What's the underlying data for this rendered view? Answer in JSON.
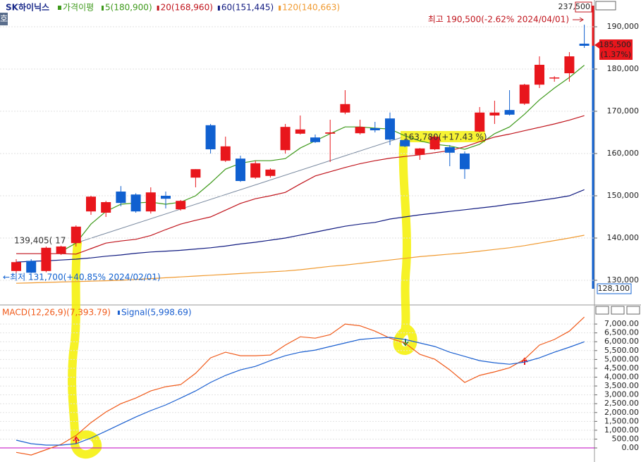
{
  "chart_data": [
    {
      "type": "candlestick",
      "title": "SK하이닉스",
      "ma_label": "가격이평",
      "up_color": "#e8161c",
      "down_color": "#1060d0",
      "grid": true,
      "ohlc": [
        [
          132200,
          135000,
          131700,
          134300
        ],
        [
          134600,
          135000,
          131700,
          131800
        ],
        [
          132200,
          138000,
          131900,
          137700
        ],
        [
          136300,
          138200,
          136000,
          138000
        ],
        [
          138800,
          143000,
          138000,
          142700
        ],
        [
          146300,
          150000,
          145500,
          149800
        ],
        [
          146000,
          148800,
          145000,
          148500
        ],
        [
          151000,
          152300,
          147500,
          148300
        ],
        [
          150300,
          150600,
          146000,
          146300
        ],
        [
          146300,
          152000,
          145800,
          150800
        ],
        [
          150000,
          151000,
          147000,
          149300
        ],
        [
          146800,
          149000,
          146500,
          148800
        ],
        [
          154300,
          156300,
          152000,
          156300
        ],
        [
          166700,
          167000,
          160000,
          161000
        ],
        [
          158300,
          164000,
          158000,
          161700
        ],
        [
          158800,
          159500,
          153300,
          153500
        ],
        [
          154300,
          158300,
          154000,
          157700
        ],
        [
          154700,
          156500,
          154300,
          156200
        ],
        [
          160800,
          167000,
          160000,
          166300
        ],
        [
          164700,
          169000,
          164500,
          165700
        ],
        [
          163800,
          164500,
          162500,
          162700
        ],
        [
          164700,
          168000,
          158000,
          165000
        ],
        [
          169700,
          175000,
          169300,
          171700
        ],
        [
          164800,
          168000,
          164500,
          166300
        ],
        [
          166000,
          167500,
          165000,
          165500
        ],
        [
          168300,
          169700,
          162000,
          163300
        ],
        [
          163200,
          163500,
          161500,
          161700
        ],
        [
          159700,
          161300,
          158500,
          161200
        ],
        [
          161000,
          164300,
          160800,
          164000
        ],
        [
          161500,
          162000,
          157000,
          160200
        ],
        [
          160000,
          160500,
          154000,
          156300
        ],
        [
          165200,
          171000,
          165000,
          169700
        ],
        [
          169000,
          172500,
          167000,
          169700
        ],
        [
          170300,
          175000,
          169000,
          169200
        ],
        [
          171800,
          176500,
          171500,
          176300
        ],
        [
          176300,
          183000,
          175500,
          181000
        ],
        [
          177800,
          178300,
          177000,
          178000
        ],
        [
          179000,
          184000,
          177000,
          183000
        ],
        [
          186000,
          190500,
          185000,
          185500
        ]
      ],
      "series": [
        {
          "name": "5(180,900)",
          "color": "#3f9a1c",
          "values": [
            null,
            null,
            null,
            136800,
            138800,
            143300,
            146300,
            148000,
            148300,
            148500,
            148000,
            148500,
            150000,
            153000,
            156300,
            157700,
            158300,
            158300,
            158800,
            161300,
            163000,
            164700,
            166300,
            166300,
            166000,
            165800,
            164200,
            163000,
            162200,
            161800,
            161000,
            162200,
            164700,
            166300,
            169300,
            172700,
            175500,
            178000,
            180900
          ]
        },
        {
          "name": "20(168,960)",
          "color": "#c0141c",
          "values": [
            136300,
            136300,
            136300,
            136300,
            136200,
            137500,
            138800,
            139300,
            139700,
            140600,
            142000,
            143300,
            144200,
            145000,
            146600,
            148200,
            149300,
            150000,
            150800,
            152800,
            154700,
            155700,
            156700,
            157600,
            158300,
            158900,
            159300,
            159700,
            160200,
            160700,
            161600,
            162800,
            163900,
            164600,
            165400,
            166200,
            167000,
            167900,
            168960
          ]
        },
        {
          "name": "60(151,445)",
          "color": "#101a80",
          "values": [
            134300,
            134500,
            134600,
            134800,
            135000,
            135300,
            135700,
            136000,
            136400,
            136700,
            136900,
            137100,
            137400,
            137700,
            138100,
            138600,
            139000,
            139500,
            140000,
            140700,
            141400,
            142100,
            142800,
            143300,
            143700,
            144500,
            145000,
            145500,
            145900,
            146300,
            146700,
            147100,
            147500,
            148000,
            148400,
            148900,
            149400,
            150000,
            151445
          ]
        },
        {
          "name": "120(140,663)",
          "color": "#f09a30",
          "values": [
            129300,
            129400,
            129500,
            129600,
            129700,
            129800,
            129900,
            130000,
            130200,
            130400,
            130600,
            130800,
            131000,
            131200,
            131400,
            131600,
            131800,
            132000,
            132200,
            132500,
            132900,
            133300,
            133600,
            134000,
            134400,
            134800,
            135200,
            135600,
            135900,
            136200,
            136500,
            136900,
            137300,
            137700,
            138200,
            138800,
            139400,
            140000,
            140663
          ]
        }
      ],
      "ylim": [
        125000,
        195000
      ],
      "yticks": [
        {
          "value": 130000,
          "label": "130,000"
        },
        {
          "value": 140000,
          "label": "140,000"
        },
        {
          "value": 150000,
          "label": "150,000"
        },
        {
          "value": 160000,
          "label": "160,000"
        },
        {
          "value": 170000,
          "label": "170,000"
        },
        {
          "value": 180000,
          "label": "180,000"
        },
        {
          "value": 190000,
          "label": "190,000"
        }
      ],
      "annotations": {
        "side_mark": "호",
        "axis_max_label": "237,500",
        "axis_min_label": "128,100",
        "last_price_label": "185,500",
        "last_change_label": "(1.37%)",
        "max_label": "최고 190,500(-2.62% 2024/04/01)",
        "min_label": "←최저 131,700(+40.85% 2024/02/01)",
        "tip_1": "139,405( 17",
        "tip_2": "163,780(+17.43 %)"
      }
    },
    {
      "type": "line",
      "grid": true,
      "series": [
        {
          "name": "MACD(12,26,9)(7,393.79)",
          "color": "#f05a1a",
          "values": [
            -250,
            -400,
            -100,
            200,
            700,
            1430,
            2030,
            2500,
            2820,
            3220,
            3460,
            3580,
            4220,
            5090,
            5410,
            5210,
            5210,
            5250,
            5810,
            6280,
            6200,
            6400,
            7000,
            6900,
            6600,
            6200,
            5930,
            5290,
            5010,
            4410,
            3700,
            4100,
            4300,
            4530,
            5010,
            5810,
            6130,
            6600,
            7393.79
          ]
        },
        {
          "name": "Signal(5,998.69)",
          "color": "#1a5fd0",
          "values": [
            440,
            240,
            160,
            160,
            240,
            560,
            950,
            1350,
            1750,
            2110,
            2430,
            2820,
            3220,
            3700,
            4100,
            4410,
            4610,
            4930,
            5210,
            5410,
            5530,
            5730,
            5930,
            6130,
            6200,
            6250,
            6130,
            5930,
            5730,
            5410,
            5170,
            4930,
            4810,
            4730,
            4850,
            5090,
            5410,
            5690,
            5998.69
          ]
        }
      ],
      "ylim": [
        -500,
        7800
      ],
      "yticks": [
        {
          "value": 0,
          "label": "0.00"
        },
        {
          "value": 500,
          "label": "500.00"
        },
        {
          "value": 1000,
          "label": "1,000.00"
        },
        {
          "value": 1500,
          "label": "1,500.00"
        },
        {
          "value": 2000,
          "label": "2,000.00"
        },
        {
          "value": 2500,
          "label": "2,500.00"
        },
        {
          "value": 3000,
          "label": "3,000.00"
        },
        {
          "value": 3500,
          "label": "3,500.00"
        },
        {
          "value": 4000,
          "label": "4,000.00"
        },
        {
          "value": 4500,
          "label": "4,500.00"
        },
        {
          "value": 5000,
          "label": "5,000.00"
        },
        {
          "value": 5500,
          "label": "5,500.00"
        },
        {
          "value": 6000,
          "label": "6,000.00"
        },
        {
          "value": 6500,
          "label": "6,500.00"
        },
        {
          "value": 7000,
          "label": "7,000.00"
        }
      ]
    }
  ]
}
